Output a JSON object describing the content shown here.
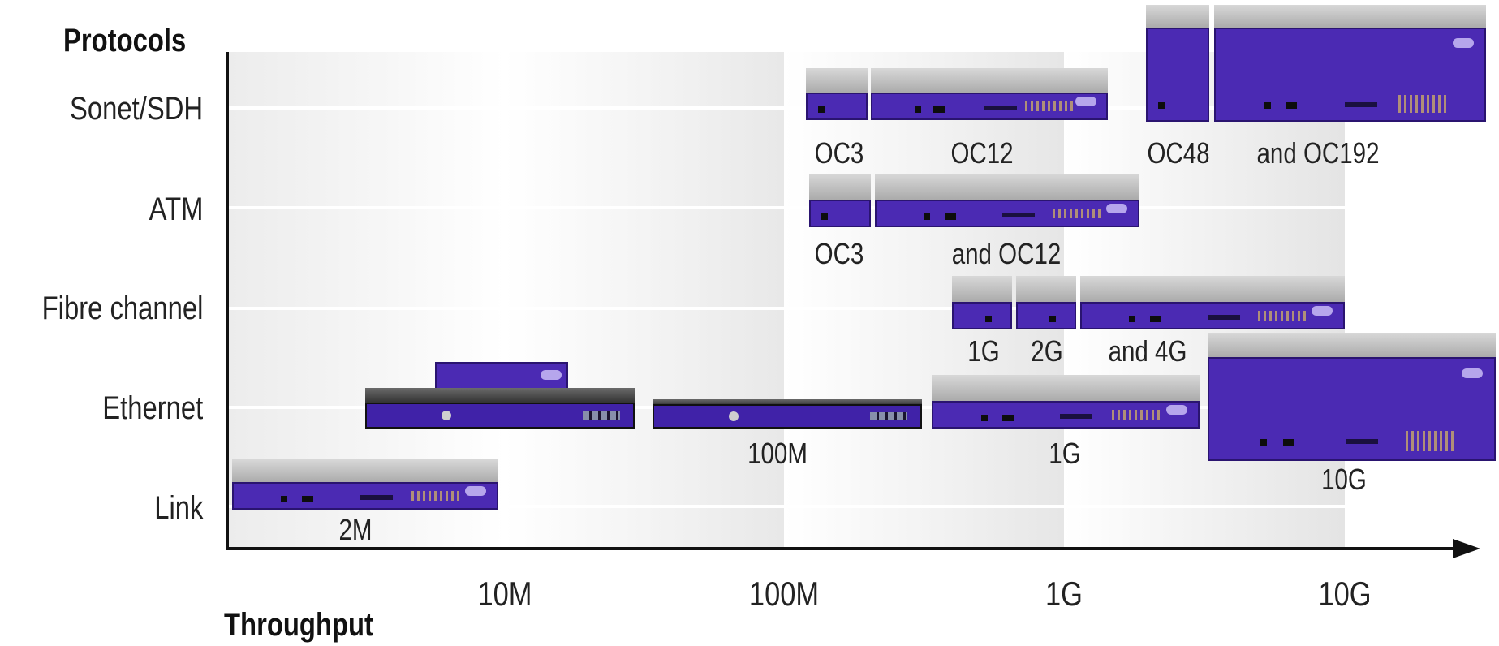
{
  "axis": {
    "y_title": "Protocols",
    "x_title": "Throughput",
    "rows": [
      "Sonet/SDH",
      "ATM",
      "Fibre channel",
      "Ethernet",
      "Link"
    ],
    "ticks": [
      "10M",
      "100M",
      "1G",
      "10G"
    ]
  },
  "devices": {
    "sonet": [
      "OC3",
      "OC12",
      "OC48",
      "and OC192"
    ],
    "atm": [
      "OC3",
      "and OC12"
    ],
    "fibre": [
      "1G",
      "2G",
      "and 4G"
    ],
    "ethernet": [
      "100M",
      "1G",
      "10G"
    ],
    "link": [
      "2M"
    ]
  },
  "colors": {
    "device_front": "#4b2ab3",
    "axis": "#111111"
  }
}
